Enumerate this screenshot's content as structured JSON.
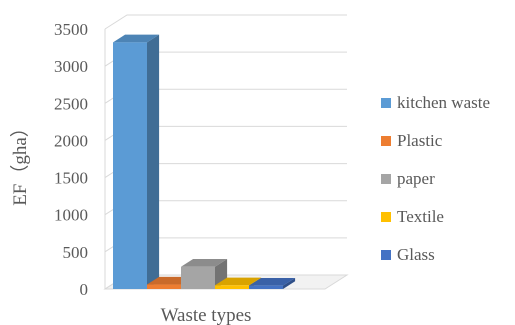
{
  "chart_data": {
    "type": "bar",
    "title": "",
    "xlabel": "Waste types",
    "ylabel": "EF（gha）",
    "categories": [
      "Waste types"
    ],
    "series": [
      {
        "name": "kitchen waste",
        "values": [
          3320
        ],
        "color": "#5b9bd5"
      },
      {
        "name": "Plastic",
        "values": [
          60
        ],
        "color": "#ed7d31"
      },
      {
        "name": "paper",
        "values": [
          300
        ],
        "color": "#a5a5a5"
      },
      {
        "name": "Textile",
        "values": [
          50
        ],
        "color": "#ffc000"
      },
      {
        "name": "Glass",
        "values": [
          45
        ],
        "color": "#4472c4"
      }
    ],
    "ylim": [
      0,
      3500
    ],
    "yticks": [
      0,
      500,
      1000,
      1500,
      2000,
      2500,
      3000,
      3500
    ],
    "grid": true,
    "legend_position": "right",
    "style": "3d-column"
  }
}
